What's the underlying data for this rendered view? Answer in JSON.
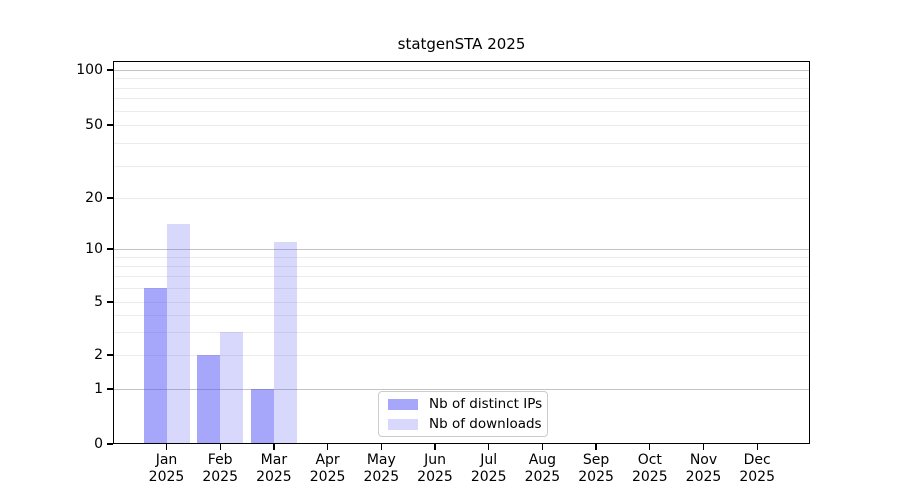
{
  "title": "statgenSTA 2025",
  "chart_data": {
    "type": "bar",
    "title": "statgenSTA 2025",
    "months": [
      "Jan",
      "Feb",
      "Mar",
      "Apr",
      "May",
      "Jun",
      "Jul",
      "Aug",
      "Sep",
      "Oct",
      "Nov",
      "Dec"
    ],
    "year_label": "2025",
    "series": [
      {
        "name": "Nb of distinct IPs",
        "color": "rgba(85,85,245,0.52)",
        "values": [
          6,
          2,
          1,
          0,
          0,
          0,
          0,
          0,
          0,
          0,
          0,
          0
        ]
      },
      {
        "name": "Nb of downloads",
        "color": "rgba(85,85,245,0.23)",
        "values": [
          14,
          3,
          11,
          0,
          0,
          0,
          0,
          0,
          0,
          0,
          0,
          0
        ]
      }
    ],
    "y_axis": {
      "scale": "symlog",
      "ticks": [
        0,
        1,
        2,
        5,
        10,
        20,
        50,
        100
      ],
      "range": [
        0,
        115
      ],
      "major_gridlines": [
        1,
        10,
        100
      ],
      "minor_gridlines": [
        2,
        3,
        4,
        5,
        6,
        7,
        8,
        9,
        20,
        30,
        40,
        50,
        60,
        70,
        80,
        90
      ]
    },
    "legend_position": "lower center inside plot",
    "colors": {
      "grid_major": "#c3c3c3",
      "grid_minor": "#ececec",
      "axis": "#000000",
      "background": "#ffffff"
    }
  }
}
